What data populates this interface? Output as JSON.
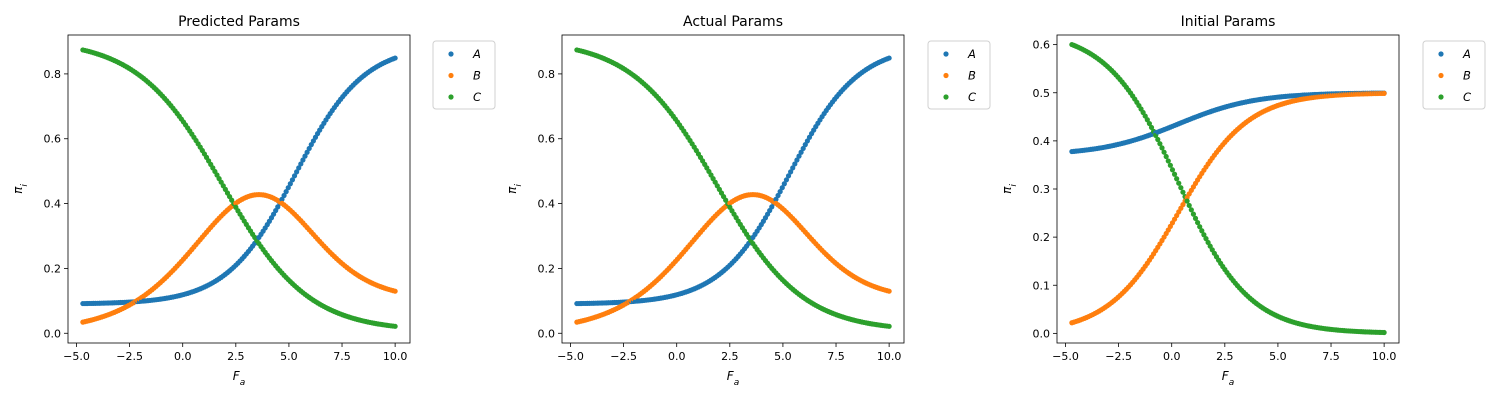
{
  "colors": {
    "A": "#1f77b4",
    "B": "#ff7f0e",
    "C": "#2ca02c"
  },
  "chart_data": [
    {
      "type": "scatter",
      "title": "Predicted Params",
      "xlabel": "F_a",
      "ylabel": "π_i",
      "xlim": [
        -5.4,
        10.7
      ],
      "ylim": [
        -0.03,
        0.92
      ],
      "xticks": [
        -5.0,
        -2.5,
        0.0,
        2.5,
        5.0,
        7.5,
        10.0
      ],
      "yticks": [
        0.0,
        0.2,
        0.4,
        0.6,
        0.8
      ],
      "ytick_decimals": 1,
      "legend": "outside-top-right",
      "model": {
        "A": [
          0.09,
          0.8,
          0.62,
          5.3
        ],
        "C": [
          0.006,
          0.9,
          0.5,
          1.9
        ],
        "x_range": [
          -4.7,
          10.0
        ],
        "n_points": 150
      },
      "series": [
        {
          "name": "A",
          "key": "A"
        },
        {
          "name": "B",
          "key": "B"
        },
        {
          "name": "C",
          "key": "C"
        }
      ]
    },
    {
      "type": "scatter",
      "title": "Actual Params",
      "xlabel": "F_a",
      "ylabel": "π_i",
      "xlim": [
        -5.4,
        10.7
      ],
      "ylim": [
        -0.03,
        0.92
      ],
      "xticks": [
        -5.0,
        -2.5,
        0.0,
        2.5,
        5.0,
        7.5,
        10.0
      ],
      "yticks": [
        0.0,
        0.2,
        0.4,
        0.6,
        0.8
      ],
      "ytick_decimals": 1,
      "legend": "outside-top-right",
      "model": {
        "A": [
          0.09,
          0.8,
          0.62,
          5.3
        ],
        "C": [
          0.006,
          0.9,
          0.5,
          1.9
        ],
        "x_range": [
          -4.7,
          10.0
        ],
        "n_points": 150
      },
      "series": [
        {
          "name": "A",
          "key": "A"
        },
        {
          "name": "B",
          "key": "B"
        },
        {
          "name": "C",
          "key": "C"
        }
      ]
    },
    {
      "type": "scatter",
      "title": "Initial Params",
      "xlabel": "F_a",
      "ylabel": "π_i",
      "xlim": [
        -5.4,
        10.7
      ],
      "ylim": [
        -0.02,
        0.62
      ],
      "xticks": [
        -5.0,
        -2.5,
        0.0,
        2.5,
        5.0,
        7.5,
        10.0
      ],
      "yticks": [
        0.0,
        0.1,
        0.2,
        0.3,
        0.4,
        0.5,
        0.6
      ],
      "ytick_decimals": 1,
      "legend": "outside-top-right",
      "model": {
        "A": [
          0.37,
          0.13,
          0.55,
          0.3
        ],
        "C": [
          0.0,
          0.63,
          0.6,
          0.3
        ],
        "x_range": [
          -4.7,
          10.0
        ],
        "n_points": 150
      },
      "series": [
        {
          "name": "A",
          "key": "A"
        },
        {
          "name": "B",
          "key": "B"
        },
        {
          "name": "C",
          "key": "C"
        }
      ]
    }
  ]
}
